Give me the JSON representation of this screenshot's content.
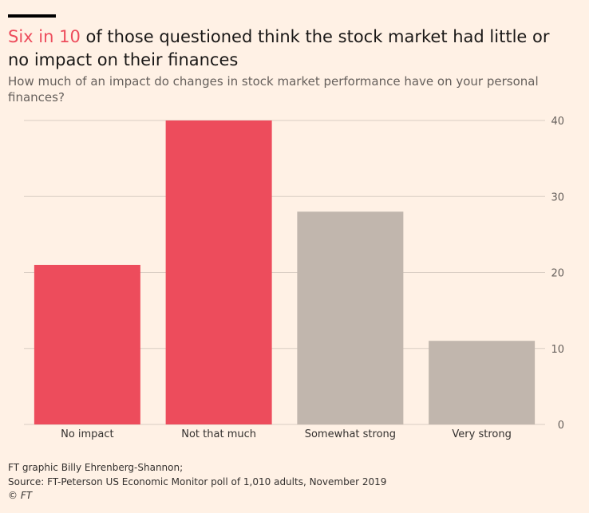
{
  "header": {
    "title_highlight": "Six in 10",
    "title_rest": " of those questioned think the stock market had little or no impact on their finances",
    "subtitle": "How much of an impact do changes in stock market performance have on your personal finances?"
  },
  "footer": {
    "credit": "FT graphic Billy Ehrenberg-Shannon;",
    "source": "Source: FT-Peterson US Economic Monitor poll of 1,010 adults, November 2019",
    "copyright": "© FT"
  },
  "colors": {
    "highlight": "#ed4c5c",
    "muted": "#c1b6ad",
    "grid": "#d9cdc3",
    "axis": "#66605c",
    "background": "#fff1e5"
  },
  "chart_data": {
    "type": "bar",
    "categories": [
      "No impact",
      "Not that much",
      "Somewhat strong",
      "Very strong"
    ],
    "values": [
      21,
      40,
      28,
      11
    ],
    "bar_colors": [
      "#ed4c5c",
      "#ed4c5c",
      "#c1b6ad",
      "#c1b6ad"
    ],
    "ylim": [
      0,
      40
    ],
    "yticks": [
      0,
      10,
      20,
      30,
      40
    ],
    "y_axis_position": "right",
    "grid": true,
    "title": "",
    "xlabel": "",
    "ylabel": ""
  }
}
